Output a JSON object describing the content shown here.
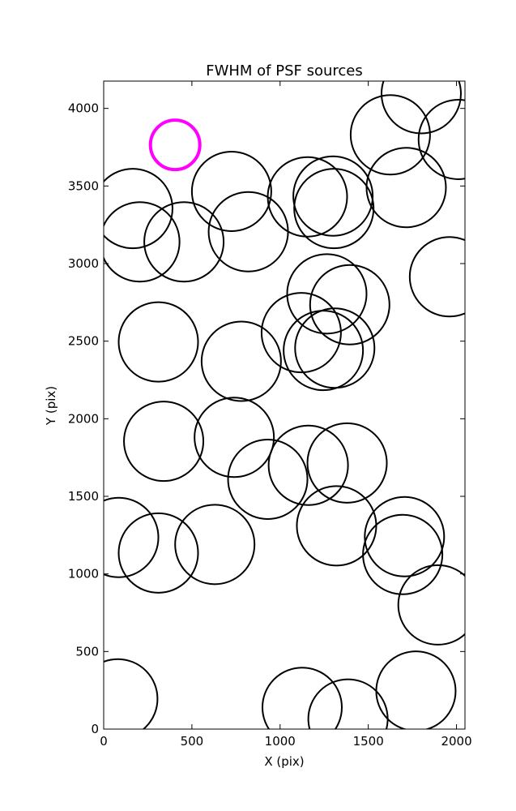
{
  "chart_data": {
    "type": "scatter",
    "title": "FWHM of PSF sources",
    "xlabel": "X (pix)",
    "ylabel": "Y (pix)",
    "xlim": [
      0,
      2048
    ],
    "ylim": [
      0,
      4176
    ],
    "xticks": [
      0,
      500,
      1000,
      1500,
      2000
    ],
    "yticks": [
      0,
      500,
      1000,
      1500,
      2000,
      2500,
      3000,
      3500,
      4000
    ],
    "xtick_labels": [
      "0",
      "500",
      "1000",
      "1500",
      "2000"
    ],
    "ytick_labels": [
      "0",
      "500",
      "1000",
      "1500",
      "2000",
      "2500",
      "3000",
      "3500",
      "4000"
    ],
    "grid": false,
    "series": [
      {
        "color": "#000000",
        "marker": "open-circle",
        "points": [
          {
            "x": 165,
            "y": 3355,
            "r": 225
          },
          {
            "x": 205,
            "y": 3140,
            "r": 225
          },
          {
            "x": 455,
            "y": 3140,
            "r": 225
          },
          {
            "x": 725,
            "y": 3465,
            "r": 225
          },
          {
            "x": 820,
            "y": 3205,
            "r": 225
          },
          {
            "x": 1155,
            "y": 3430,
            "r": 225
          },
          {
            "x": 1300,
            "y": 3435,
            "r": 225
          },
          {
            "x": 1305,
            "y": 3355,
            "r": 225
          },
          {
            "x": 1625,
            "y": 3830,
            "r": 225
          },
          {
            "x": 1715,
            "y": 3490,
            "r": 225
          },
          {
            "x": 1800,
            "y": 4095,
            "r": 225
          },
          {
            "x": 2010,
            "y": 3800,
            "r": 225
          },
          {
            "x": 1960,
            "y": 2915,
            "r": 225
          },
          {
            "x": 1265,
            "y": 2805,
            "r": 225
          },
          {
            "x": 1395,
            "y": 2735,
            "r": 225
          },
          {
            "x": 1120,
            "y": 2555,
            "r": 225
          },
          {
            "x": 1245,
            "y": 2440,
            "r": 225
          },
          {
            "x": 1310,
            "y": 2455,
            "r": 225
          },
          {
            "x": 310,
            "y": 2495,
            "r": 225
          },
          {
            "x": 780,
            "y": 2370,
            "r": 225
          },
          {
            "x": 340,
            "y": 1855,
            "r": 225
          },
          {
            "x": 740,
            "y": 1880,
            "r": 225
          },
          {
            "x": 930,
            "y": 1610,
            "r": 225
          },
          {
            "x": 1160,
            "y": 1700,
            "r": 225
          },
          {
            "x": 1380,
            "y": 1715,
            "r": 225
          },
          {
            "x": 1320,
            "y": 1310,
            "r": 225
          },
          {
            "x": 1705,
            "y": 1240,
            "r": 225
          },
          {
            "x": 1695,
            "y": 1125,
            "r": 225
          },
          {
            "x": 1895,
            "y": 800,
            "r": 225
          },
          {
            "x": 85,
            "y": 1235,
            "r": 225
          },
          {
            "x": 310,
            "y": 1135,
            "r": 225
          },
          {
            "x": 630,
            "y": 1190,
            "r": 225
          },
          {
            "x": 80,
            "y": 195,
            "r": 225
          },
          {
            "x": 1125,
            "y": 140,
            "r": 225
          },
          {
            "x": 1385,
            "y": 65,
            "r": 225
          },
          {
            "x": 1770,
            "y": 245,
            "r": 225
          }
        ]
      },
      {
        "color": "#ff00ff",
        "marker": "open-circle",
        "points": [
          {
            "x": 405,
            "y": 3765,
            "r": 140
          }
        ]
      }
    ]
  }
}
